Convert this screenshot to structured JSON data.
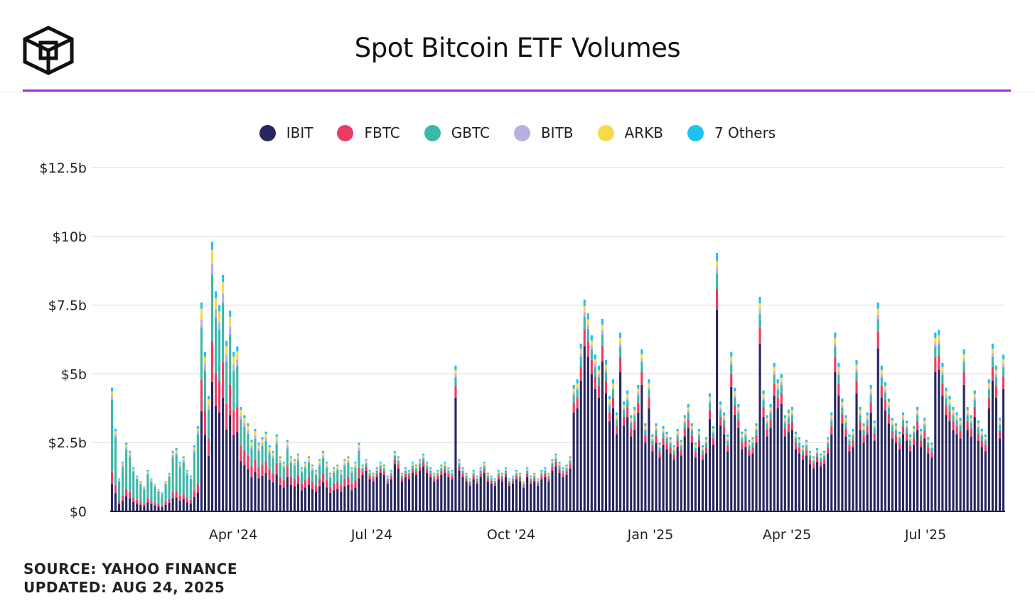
{
  "header": {
    "title": "Spot Bitcoin ETF Volumes",
    "logo_icon": "cube-logo-icon"
  },
  "colors": {
    "accent_rule": "#9b2fe3",
    "IBIT": "#27265e",
    "FBTC": "#ec3b63",
    "GBTC": "#3bb8a8",
    "BITB": "#b7b0e3",
    "ARKB": "#f7d94c",
    "Others": "#1cc2f2"
  },
  "legend": [
    {
      "label": "IBIT",
      "color": "#27265e"
    },
    {
      "label": "FBTC",
      "color": "#ec3b63"
    },
    {
      "label": "GBTC",
      "color": "#3bb8a8"
    },
    {
      "label": "BITB",
      "color": "#b7b0e3"
    },
    {
      "label": "ARKB",
      "color": "#f7d94c"
    },
    {
      "label": "7 Others",
      "color": "#1cc2f2"
    }
  ],
  "footer": {
    "source": "SOURCE: YAHOO FINANCE",
    "updated": "UPDATED: AUG 24, 2025"
  },
  "chart_data": {
    "type": "bar",
    "stacked": true,
    "title": "Spot Bitcoin ETF Volumes",
    "ylabel": "",
    "xlabel": "",
    "unit": "billion USD",
    "ylim": [
      0,
      12.5
    ],
    "yticks": [
      {
        "value": 0,
        "label": "$0"
      },
      {
        "value": 2.5,
        "label": "$2.5b"
      },
      {
        "value": 5,
        "label": "$5b"
      },
      {
        "value": 7.5,
        "label": "$7.5b"
      },
      {
        "value": 10,
        "label": "$10b"
      },
      {
        "value": 12.5,
        "label": "$12.5b"
      }
    ],
    "xticks": [
      "Apr '24",
      "Jul '24",
      "Oct '24",
      "Jan '25",
      "Apr '25",
      "Jul '25"
    ],
    "x_range": [
      "Jan '24",
      "Aug '25"
    ],
    "grid": true,
    "legend_position": "top-center",
    "series_order": [
      "IBIT",
      "FBTC",
      "GBTC",
      "BITB",
      "ARKB",
      "7 Others"
    ],
    "series_colors": [
      "#27265e",
      "#ec3b63",
      "#3bb8a8",
      "#b7b0e3",
      "#f7d94c",
      "#1cc2f2"
    ],
    "totals": [
      4.5,
      3.0,
      1.2,
      1.8,
      2.5,
      2.2,
      1.6,
      1.3,
      1.1,
      0.9,
      1.5,
      1.2,
      1.0,
      0.8,
      0.7,
      1.1,
      1.4,
      2.2,
      2.3,
      1.8,
      2.0,
      1.5,
      1.3,
      2.4,
      3.1,
      7.6,
      5.8,
      4.2,
      9.8,
      8.0,
      7.5,
      8.6,
      6.2,
      7.3,
      5.8,
      6.0,
      3.8,
      3.5,
      3.2,
      2.6,
      3.0,
      2.5,
      2.7,
      2.9,
      2.4,
      2.2,
      2.8,
      2.0,
      1.8,
      2.6,
      2.0,
      1.9,
      2.1,
      1.6,
      1.8,
      2.0,
      1.7,
      1.5,
      1.9,
      2.2,
      1.8,
      1.4,
      1.6,
      1.7,
      1.5,
      1.9,
      2.0,
      1.6,
      1.8,
      2.5,
      1.7,
      1.9,
      1.5,
      1.4,
      1.6,
      1.8,
      1.7,
      1.3,
      1.5,
      2.2,
      2.0,
      1.4,
      1.6,
      1.5,
      1.8,
      1.7,
      1.9,
      2.1,
      1.8,
      1.6,
      1.4,
      1.5,
      1.7,
      1.8,
      1.6,
      1.5,
      5.3,
      1.9,
      1.6,
      1.4,
      1.2,
      1.5,
      1.3,
      1.6,
      1.8,
      1.4,
      1.3,
      1.2,
      1.5,
      1.4,
      1.6,
      1.2,
      1.3,
      1.5,
      1.4,
      1.1,
      1.6,
      1.3,
      1.4,
      1.2,
      1.5,
      1.6,
      1.4,
      1.9,
      2.1,
      1.8,
      1.6,
      1.7,
      2.0,
      4.6,
      4.8,
      6.1,
      7.7,
      7.2,
      6.4,
      5.7,
      5.3,
      7.0,
      5.5,
      4.2,
      4.8,
      3.6,
      6.5,
      4.0,
      4.4,
      3.5,
      3.8,
      4.6,
      5.9,
      3.2,
      4.8,
      2.8,
      3.2,
      2.5,
      3.1,
      2.9,
      2.7,
      2.4,
      3.0,
      2.6,
      3.5,
      3.9,
      3.2,
      2.5,
      3.0,
      2.4,
      2.7,
      4.3,
      3.1,
      9.4,
      4.0,
      3.6,
      2.8,
      5.8,
      4.5,
      3.9,
      2.9,
      3.0,
      2.6,
      2.7,
      3.2,
      7.8,
      4.4,
      3.5,
      3.9,
      5.4,
      4.8,
      5.0,
      3.5,
      3.7,
      3.8,
      2.9,
      2.7,
      2.4,
      2.6,
      2.2,
      2.0,
      2.3,
      2.1,
      2.2,
      2.7,
      3.6,
      6.5,
      5.4,
      4.1,
      3.5,
      2.8,
      3.0,
      5.5,
      3.8,
      3.2,
      3.6,
      4.6,
      3.3,
      7.6,
      5.3,
      4.7,
      4.1,
      3.4,
      3.2,
      2.9,
      3.6,
      3.3,
      2.8,
      3.1,
      3.8,
      3.0,
      3.4,
      2.7,
      2.5,
      6.5,
      6.6,
      5.4,
      4.5,
      4.2,
      3.8,
      3.6,
      3.4,
      5.9,
      3.8,
      3.5,
      4.4,
      3.3,
      3.0,
      2.8,
      4.8,
      6.1,
      5.3,
      3.4,
      5.7
    ]
  }
}
